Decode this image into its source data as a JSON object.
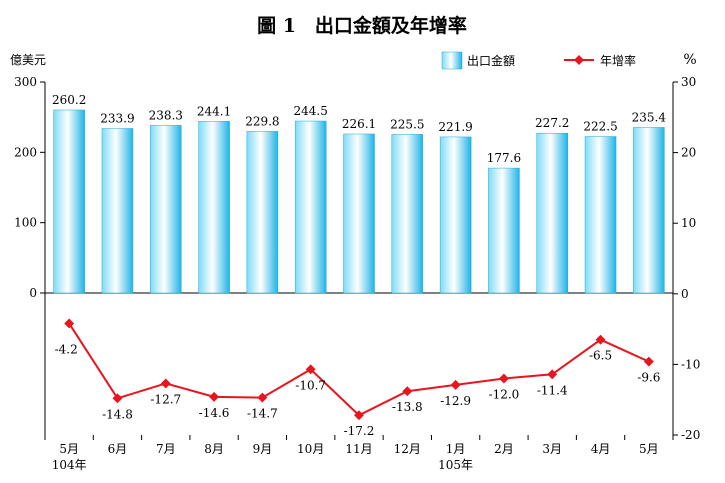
{
  "chart_data": {
    "type": "bar+line",
    "title": "圖 1　出口金額及年增率",
    "left_unit": "億美元",
    "right_unit": "%",
    "categories": [
      "5月",
      "6月",
      "7月",
      "8月",
      "9月",
      "10月",
      "11月",
      "12月",
      "1月",
      "2月",
      "3月",
      "4月",
      "5月"
    ],
    "year_labels": [
      {
        "index": 0,
        "text": "104年"
      },
      {
        "index": 8,
        "text": "105年"
      }
    ],
    "series": [
      {
        "name": "出口金額",
        "type": "bar",
        "axis": "left",
        "color": "#33bfee",
        "values": [
          260.2,
          233.9,
          238.3,
          244.1,
          229.8,
          244.5,
          226.1,
          225.5,
          221.9,
          177.6,
          227.2,
          222.5,
          235.4
        ]
      },
      {
        "name": "年增率",
        "type": "line",
        "axis": "right",
        "color": "#e8141e",
        "values": [
          -4.2,
          -14.8,
          -12.7,
          -14.6,
          -14.7,
          -10.7,
          -17.2,
          -13.8,
          -12.9,
          -12.0,
          -11.4,
          -6.5,
          -9.6
        ]
      }
    ],
    "left_axis": {
      "range": [
        0,
        300
      ],
      "ticks": [
        "0",
        "100",
        "200",
        "300"
      ]
    },
    "right_axis": {
      "range": [
        -20,
        30
      ],
      "ticks": [
        "-20",
        "-10",
        "0",
        "10",
        "20",
        "30"
      ]
    },
    "legend_position": "top-right",
    "grid": false
  }
}
